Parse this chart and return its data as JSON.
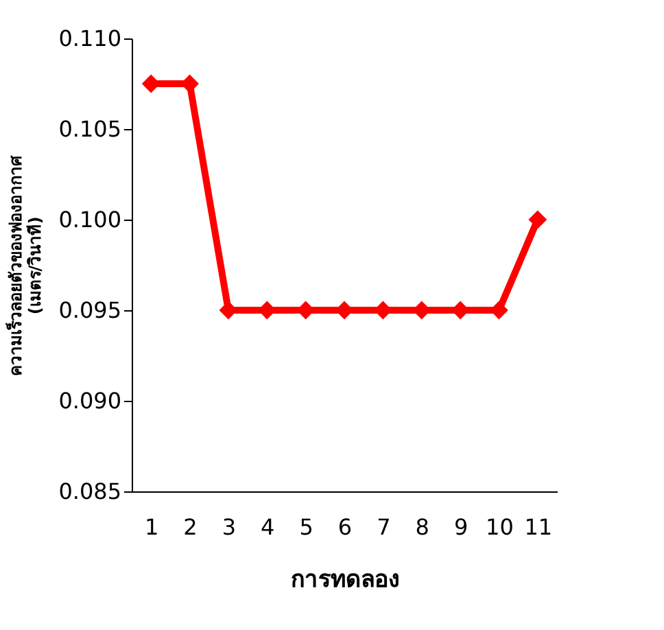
{
  "chart_data": {
    "type": "line",
    "xlabel": "การทดลอง",
    "ylabel": "ความเร็วลอยตัวของฟองอากาศ\n(เมตร/วินาที)",
    "categories": [
      "1",
      "2",
      "3",
      "4",
      "5",
      "6",
      "7",
      "8",
      "9",
      "10",
      "11"
    ],
    "series": [
      {
        "color": "#ff0000",
        "values": [
          0.1075,
          0.1075,
          0.095,
          0.095,
          0.095,
          0.095,
          0.095,
          0.095,
          0.095,
          0.095,
          0.1
        ]
      }
    ],
    "ylim": [
      0.085,
      0.11
    ],
    "yticks": [
      {
        "value": 0.085,
        "label": "0.085"
      },
      {
        "value": 0.09,
        "label": "0.090"
      },
      {
        "value": 0.095,
        "label": "0.095"
      },
      {
        "value": 0.1,
        "label": "0.100"
      },
      {
        "value": 0.105,
        "label": "0.105"
      },
      {
        "value": 0.11,
        "label": "0.110"
      }
    ],
    "grid": false,
    "marker": "diamond",
    "line_style": "solid"
  }
}
